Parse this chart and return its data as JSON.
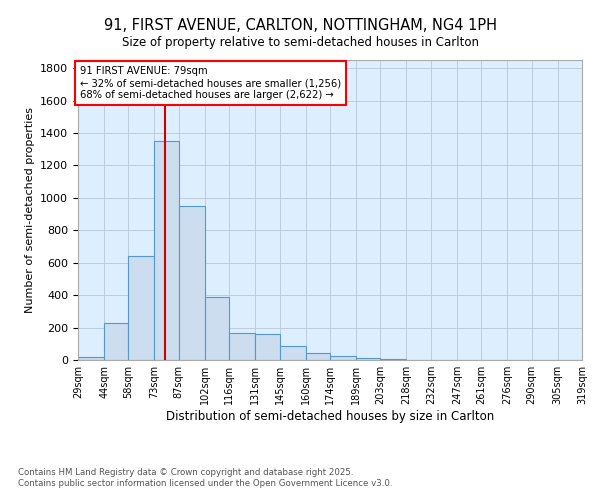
{
  "title1": "91, FIRST AVENUE, CARLTON, NOTTINGHAM, NG4 1PH",
  "title2": "Size of property relative to semi-detached houses in Carlton",
  "xlabel": "Distribution of semi-detached houses by size in Carlton",
  "ylabel": "Number of semi-detached properties",
  "footer1": "Contains HM Land Registry data © Crown copyright and database right 2025.",
  "footer2": "Contains public sector information licensed under the Open Government Licence v3.0.",
  "annotation_title": "91 FIRST AVENUE: 79sqm",
  "annotation_line1": "← 32% of semi-detached houses are smaller (1,256)",
  "annotation_line2": "68% of semi-detached houses are larger (2,622) →",
  "property_size": 79,
  "bin_edges": [
    29,
    44,
    58,
    73,
    87,
    102,
    116,
    131,
    145,
    160,
    174,
    189,
    203,
    218,
    232,
    247,
    261,
    276,
    290,
    305,
    319
  ],
  "bin_labels": [
    "29sqm",
    "44sqm",
    "58sqm",
    "73sqm",
    "87sqm",
    "102sqm",
    "116sqm",
    "131sqm",
    "145sqm",
    "160sqm",
    "174sqm",
    "189sqm",
    "203sqm",
    "218sqm",
    "232sqm",
    "247sqm",
    "261sqm",
    "276sqm",
    "290sqm",
    "305sqm",
    "319sqm"
  ],
  "counts": [
    20,
    230,
    640,
    1350,
    950,
    390,
    165,
    160,
    85,
    45,
    25,
    10,
    5,
    3,
    2,
    2,
    1,
    1,
    1,
    1
  ],
  "bar_color": "#ccddf0",
  "bar_edge_color": "#5599cc",
  "vline_color": "#cc0000",
  "background_color": "#ffffff",
  "axes_bg_color": "#ddeeff",
  "grid_color": "#bbccdd",
  "ylim": [
    0,
    1850
  ],
  "yticks": [
    0,
    200,
    400,
    600,
    800,
    1000,
    1200,
    1400,
    1600,
    1800
  ]
}
